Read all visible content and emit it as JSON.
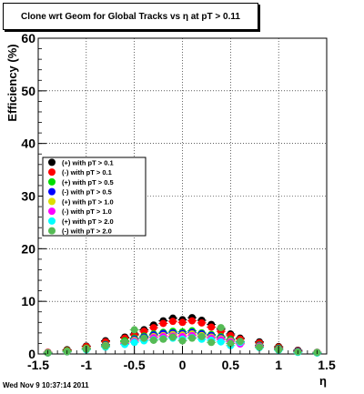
{
  "chart_data": {
    "type": "scatter",
    "title": "Clone wrt Geom for Global Tracks vs   η at pT > 0.11",
    "xlabel": "η",
    "ylabel": "Efficiency (%)",
    "xlim": [
      -1.5,
      1.5
    ],
    "ylim": [
      0,
      60
    ],
    "xticks": [
      "-1.5",
      "-1",
      "-0.5",
      "0",
      "0.5",
      "1",
      "1.5"
    ],
    "yticks": [
      "0",
      "10",
      "20",
      "30",
      "40",
      "50",
      "60"
    ],
    "grid": true,
    "legend_position": "middle-left",
    "footer": "Wed Nov  9 10:37:14 2011",
    "series": [
      {
        "name": "(+) with pT > 0.1",
        "color": "#000000",
        "x": [
          -1.4,
          -1.2,
          -1.0,
          -0.8,
          -0.6,
          -0.5,
          -0.4,
          -0.3,
          -0.2,
          -0.1,
          0.0,
          0.1,
          0.2,
          0.3,
          0.4,
          0.5,
          0.6,
          0.8,
          1.0,
          1.2,
          1.4
        ],
        "y": [
          0.3,
          0.8,
          1.5,
          2.5,
          3.2,
          3.8,
          4.6,
          5.5,
          6.3,
          6.8,
          6.5,
          6.9,
          6.4,
          5.6,
          4.7,
          3.8,
          3.0,
          2.3,
          1.4,
          0.7,
          0.3
        ]
      },
      {
        "name": "(-) with pT > 0.1",
        "color": "#ff0000",
        "x": [
          -1.4,
          -1.2,
          -1.0,
          -0.8,
          -0.6,
          -0.5,
          -0.4,
          -0.3,
          -0.2,
          -0.1,
          0.0,
          0.1,
          0.2,
          0.3,
          0.4,
          0.5,
          0.6,
          0.8,
          1.0,
          1.2,
          1.4
        ],
        "y": [
          0.3,
          0.7,
          1.4,
          2.3,
          3.0,
          3.6,
          4.3,
          5.0,
          5.8,
          6.2,
          6.0,
          6.3,
          5.9,
          5.1,
          4.3,
          3.5,
          2.8,
          2.1,
          1.3,
          0.6,
          0.3
        ]
      },
      {
        "name": "(+) with pT > 0.5",
        "color": "#00dd00",
        "x": [
          -1.4,
          -1.2,
          -1.0,
          -0.8,
          -0.6,
          -0.5,
          -0.4,
          -0.3,
          -0.2,
          -0.1,
          0.0,
          0.1,
          0.2,
          0.3,
          0.4,
          0.5,
          0.6,
          0.8,
          1.0,
          1.2,
          1.4
        ],
        "y": [
          0.2,
          0.6,
          1.1,
          1.8,
          2.5,
          3.0,
          3.4,
          3.8,
          4.1,
          4.3,
          4.2,
          4.4,
          4.0,
          3.7,
          3.3,
          2.8,
          2.3,
          1.7,
          1.1,
          0.5,
          0.2
        ]
      },
      {
        "name": "(-) with pT > 0.5",
        "color": "#0000ff",
        "x": [
          -1.4,
          -1.2,
          -1.0,
          -0.8,
          -0.6,
          -0.5,
          -0.4,
          -0.3,
          -0.2,
          -0.1,
          0.0,
          0.1,
          0.2,
          0.3,
          0.4,
          0.5,
          0.6,
          0.8,
          1.0,
          1.2,
          1.4
        ],
        "y": [
          0.2,
          0.5,
          1.0,
          1.7,
          2.3,
          2.8,
          3.2,
          3.6,
          3.9,
          4.0,
          3.9,
          4.1,
          3.8,
          3.5,
          3.1,
          2.6,
          2.2,
          1.6,
          1.0,
          0.5,
          0.2
        ]
      },
      {
        "name": "(+) with pT > 1.0",
        "color": "#dddd00",
        "x": [
          -1.4,
          -1.2,
          -1.0,
          -0.8,
          -0.6,
          -0.5,
          -0.4,
          -0.3,
          -0.2,
          -0.1,
          0.0,
          0.1,
          0.2,
          0.3,
          0.4,
          0.5,
          0.6,
          0.8,
          1.0,
          1.2,
          1.4
        ],
        "y": [
          0.2,
          0.5,
          1.0,
          1.6,
          2.2,
          2.6,
          3.0,
          3.3,
          3.5,
          3.7,
          3.6,
          3.8,
          3.5,
          3.2,
          2.9,
          2.5,
          2.0,
          1.5,
          0.9,
          0.4,
          0.2
        ]
      },
      {
        "name": "(-) with pT > 1.0",
        "color": "#ff00ff",
        "x": [
          -1.4,
          -1.2,
          -1.0,
          -0.8,
          -0.6,
          -0.5,
          -0.4,
          -0.3,
          -0.2,
          -0.1,
          0.0,
          0.1,
          0.2,
          0.3,
          0.4,
          0.5,
          0.6,
          0.8,
          1.0,
          1.2,
          1.4
        ],
        "y": [
          0.2,
          0.4,
          0.9,
          1.5,
          2.0,
          2.4,
          2.8,
          3.1,
          3.3,
          3.4,
          3.3,
          3.5,
          3.2,
          3.0,
          2.7,
          2.3,
          1.9,
          1.4,
          0.8,
          0.4,
          0.3
        ]
      },
      {
        "name": "(+) with pT > 2.0",
        "color": "#00ffff",
        "x": [
          -1.4,
          -1.2,
          -1.0,
          -0.8,
          -0.6,
          -0.5,
          -0.4,
          -0.3,
          -0.2,
          -0.1,
          0.0,
          0.1,
          0.2,
          0.3,
          0.4,
          0.5,
          0.6,
          0.8,
          1.0,
          1.2,
          1.4
        ],
        "y": [
          0.2,
          0.4,
          0.8,
          1.3,
          1.8,
          2.2,
          2.5,
          2.7,
          2.9,
          3.0,
          2.8,
          3.1,
          2.8,
          2.6,
          2.3,
          1.6,
          2.2,
          1.2,
          0.7,
          0.3,
          0.2
        ]
      },
      {
        "name": "(-) with pT > 2.0",
        "color": "#55bb55",
        "x": [
          -1.4,
          -1.2,
          -1.0,
          -0.8,
          -0.6,
          -0.5,
          -0.4,
          -0.3,
          -0.2,
          -0.1,
          0.0,
          0.1,
          0.2,
          0.3,
          0.4,
          0.5,
          0.6,
          0.8,
          1.0,
          1.2,
          1.4
        ],
        "y": [
          0.2,
          0.4,
          0.9,
          1.5,
          2.3,
          4.6,
          3.0,
          2.6,
          2.8,
          3.2,
          2.5,
          3.0,
          3.3,
          2.2,
          5.0,
          2.0,
          2.4,
          1.3,
          0.8,
          0.4,
          0.3
        ]
      }
    ]
  }
}
